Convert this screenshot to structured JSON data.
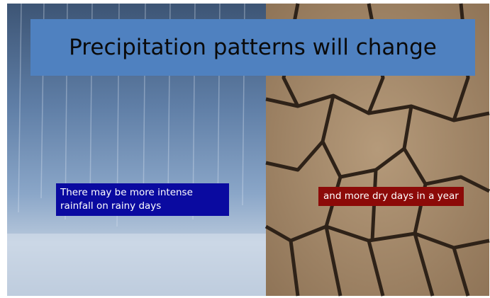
{
  "title": "Precipitation patterns will change",
  "captions": {
    "left": "There may be more intense rainfall on rainy days",
    "right": "and more dry days in a year"
  }
}
